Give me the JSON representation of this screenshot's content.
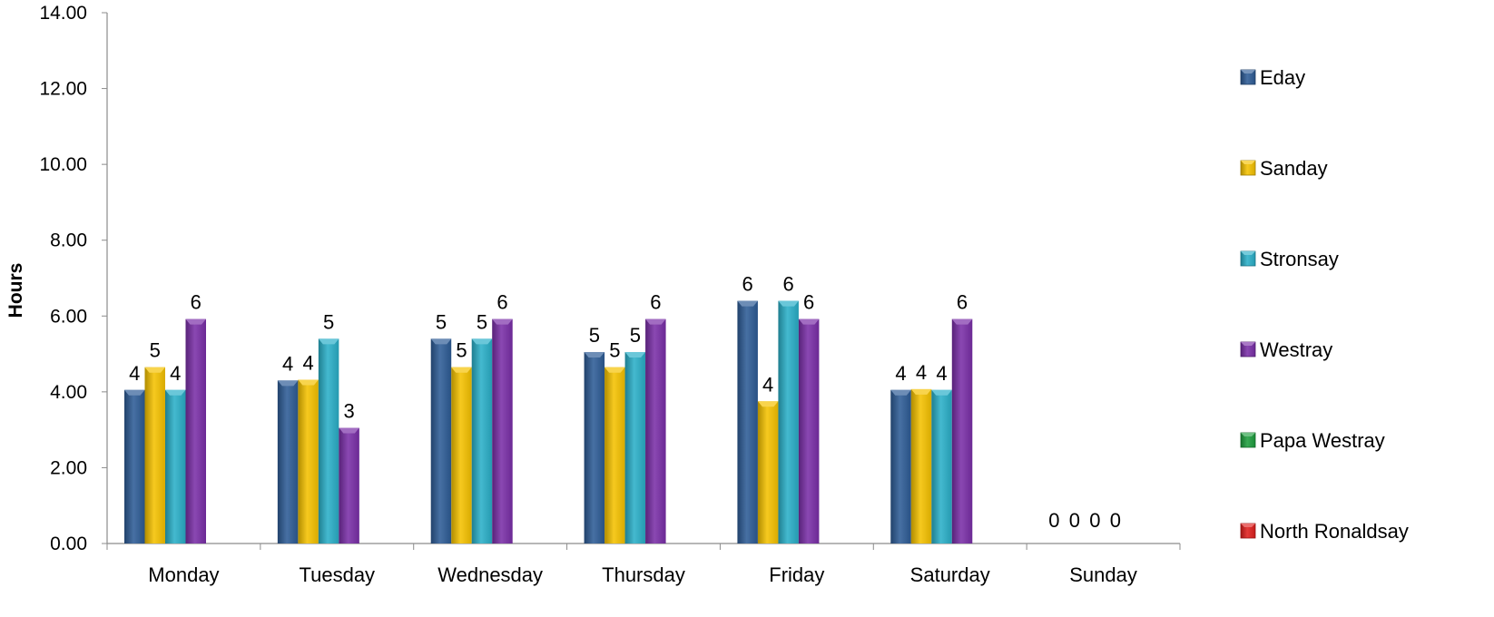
{
  "chart_data": {
    "type": "bar",
    "ylabel": "Hours",
    "ylim": [
      0,
      14
    ],
    "yticks": [
      "0.00",
      "2.00",
      "4.00",
      "6.00",
      "8.00",
      "10.00",
      "12.00",
      "14.00"
    ],
    "categories": [
      "Monday",
      "Tuesday",
      "Wednesday",
      "Thursday",
      "Friday",
      "Saturday",
      "Sunday"
    ],
    "legend_position": "right",
    "series": [
      {
        "name": "Eday",
        "color": "#2E5C96",
        "values": [
          4.05,
          4.3,
          5.4,
          5.05,
          6.4,
          4.05,
          0
        ],
        "labels": [
          "4",
          "4",
          "5",
          "5",
          "6",
          "4",
          "0"
        ]
      },
      {
        "name": "Sanday",
        "color": "#F5C200",
        "values": [
          4.65,
          4.32,
          4.65,
          4.65,
          3.75,
          4.07,
          0
        ],
        "labels": [
          "5",
          "4",
          "5",
          "5",
          "4",
          "4",
          "0"
        ]
      },
      {
        "name": "Stronsay",
        "color": "#2AAFC8",
        "values": [
          4.05,
          5.4,
          5.4,
          5.05,
          6.4,
          4.05,
          0
        ],
        "labels": [
          "4",
          "5",
          "5",
          "5",
          "6",
          "4",
          "0"
        ]
      },
      {
        "name": "Westray",
        "color": "#7A2FA8",
        "values": [
          5.92,
          3.05,
          5.92,
          5.92,
          5.92,
          5.92,
          0
        ],
        "labels": [
          "6",
          "3",
          "6",
          "6",
          "6",
          "6",
          "0"
        ]
      },
      {
        "name": "Papa Westray",
        "color": "#1E9E3E",
        "values": [
          0,
          0,
          0,
          0,
          0,
          0,
          0
        ],
        "labels": [
          "",
          "",
          "",
          "",
          "",
          "",
          ""
        ]
      },
      {
        "name": "North Ronaldsay",
        "color": "#E0201E",
        "values": [
          0,
          0,
          0,
          0,
          0,
          0,
          0
        ],
        "labels": [
          "",
          "",
          "",
          "",
          "",
          "",
          ""
        ]
      }
    ]
  }
}
